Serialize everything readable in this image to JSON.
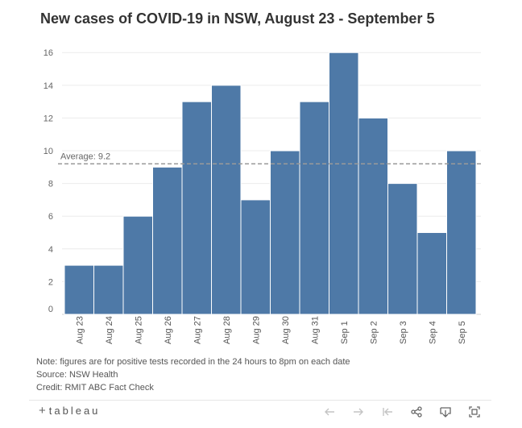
{
  "title": "New cases of COVID-19 in NSW, August 23 - September 5",
  "chart_data": {
    "type": "bar",
    "title": "New cases of COVID-19 in NSW, August 23 - September 5",
    "categories": [
      "Aug 23",
      "Aug 24",
      "Aug 25",
      "Aug 26",
      "Aug 27",
      "Aug 28",
      "Aug 29",
      "Aug 30",
      "Aug 31",
      "Sep 1",
      "Sep 2",
      "Sep 3",
      "Sep 4",
      "Sep 5"
    ],
    "values": [
      3,
      3,
      6,
      9,
      13,
      14,
      7,
      10,
      13,
      16,
      12,
      8,
      5,
      10
    ],
    "yticks": [
      0,
      2,
      4,
      6,
      8,
      10,
      12,
      14,
      16
    ],
    "ylim": [
      0,
      16.8
    ],
    "xlabel": "",
    "ylabel": "",
    "reference_line": {
      "label": "Average: 9.2",
      "value": 9.2
    },
    "bar_color": "#4e79a7",
    "grid": true
  },
  "notes": [
    "Note: figures are for positive tests recorded in the 24 hours to 8pm on each date",
    "Source: NSW Health",
    "Credit: RMIT ABC Fact Check"
  ],
  "footer": {
    "logo_mark": "+",
    "logo_text": "tableau",
    "icons": [
      "undo-icon",
      "redo-icon",
      "revert-icon",
      "share-icon",
      "download-icon",
      "fullscreen-icon"
    ]
  }
}
